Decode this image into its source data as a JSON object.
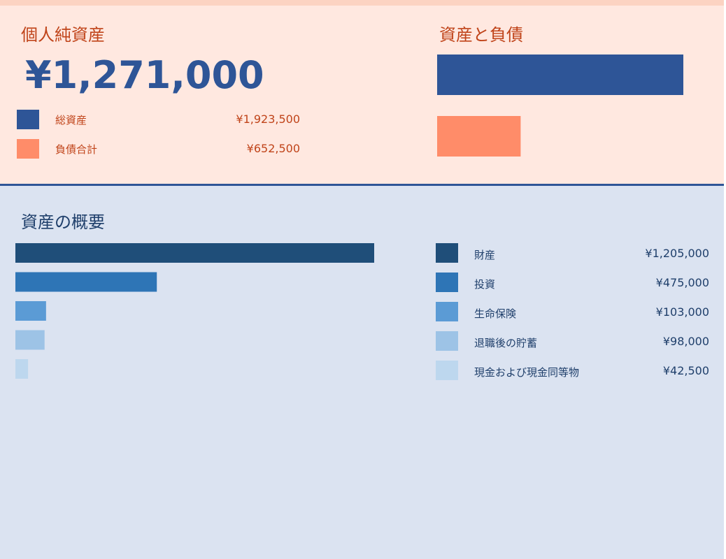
{
  "net_worth": {
    "title": "個人純資産",
    "value": "¥1,271,000",
    "legend": [
      {
        "label": "総資産",
        "value": "¥1,923,500",
        "color": "#2e5597"
      },
      {
        "label": "負債合計",
        "value": "¥652,500",
        "color": "#ff8c69"
      }
    ]
  },
  "assets_vs_liabilities": {
    "title": "資産と負債"
  },
  "asset_summary": {
    "title": "資産の概要",
    "items": [
      {
        "label": "財産",
        "value": "¥1,205,000",
        "color": "#1f4e79"
      },
      {
        "label": "投資",
        "value": "¥475,000",
        "color": "#2e75b6"
      },
      {
        "label": "生命保険",
        "value": "¥103,000",
        "color": "#5b9bd5"
      },
      {
        "label": "退職後の貯蓄",
        "value": "¥98,000",
        "color": "#9dc3e6"
      },
      {
        "label": "現金および現金同等物",
        "value": "¥42,500",
        "color": "#bdd7ee"
      }
    ]
  },
  "chart_data": [
    {
      "type": "bar",
      "orientation": "horizontal",
      "categories": [
        "総資産",
        "負債合計"
      ],
      "values": [
        1923500,
        652500
      ],
      "colors": [
        "#2e5597",
        "#ff8c69"
      ],
      "title": "資産と負債"
    },
    {
      "type": "bar",
      "orientation": "horizontal",
      "categories": [
        "財産",
        "投資",
        "生命保険",
        "退職後の貯蓄",
        "現金および現金同等物"
      ],
      "values": [
        1205000,
        475000,
        103000,
        98000,
        42500
      ],
      "colors": [
        "#1f4e79",
        "#2e75b6",
        "#5b9bd5",
        "#9dc3e6",
        "#bdd7ee"
      ],
      "title": "資産の概要"
    }
  ]
}
